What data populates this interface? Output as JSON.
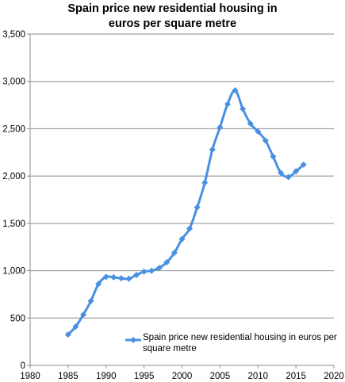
{
  "chart_data": {
    "type": "line",
    "title": [
      "Spain price new residential housing in",
      "euros per square metre"
    ],
    "xlim": [
      1980,
      2020
    ],
    "ylim": [
      0,
      3500
    ],
    "x_ticks": [
      1980,
      1985,
      1990,
      1995,
      2000,
      2005,
      2010,
      2015,
      2020
    ],
    "y_ticks": [
      0,
      500,
      1000,
      1500,
      2000,
      2500,
      3000,
      3500
    ],
    "y_tick_labels": [
      "0",
      "500",
      "1,000",
      "1,500",
      "2,000",
      "2,500",
      "3,000",
      "3,500"
    ],
    "grid": "horizontal",
    "legend_position": "bottom-right",
    "series": [
      {
        "name": "Spain price new residential housing in euros per square metre",
        "color": "#4a90e2",
        "marker": "diamond",
        "x": [
          1985,
          1986,
          1987,
          1988,
          1989,
          1990,
          1991,
          1992,
          1993,
          1994,
          1995,
          1996,
          1997,
          1998,
          1999,
          2000,
          2001,
          2002,
          2003,
          2004,
          2005,
          2006,
          2007,
          2008,
          2009,
          2010,
          2011,
          2012,
          2013,
          2014,
          2015,
          2016
        ],
        "values": [
          325,
          410,
          535,
          680,
          860,
          935,
          930,
          920,
          915,
          955,
          990,
          1000,
          1030,
          1090,
          1190,
          1335,
          1445,
          1670,
          1930,
          2280,
          2515,
          2760,
          2905,
          2710,
          2555,
          2470,
          2375,
          2205,
          2035,
          1990,
          2050,
          2120
        ]
      }
    ]
  }
}
